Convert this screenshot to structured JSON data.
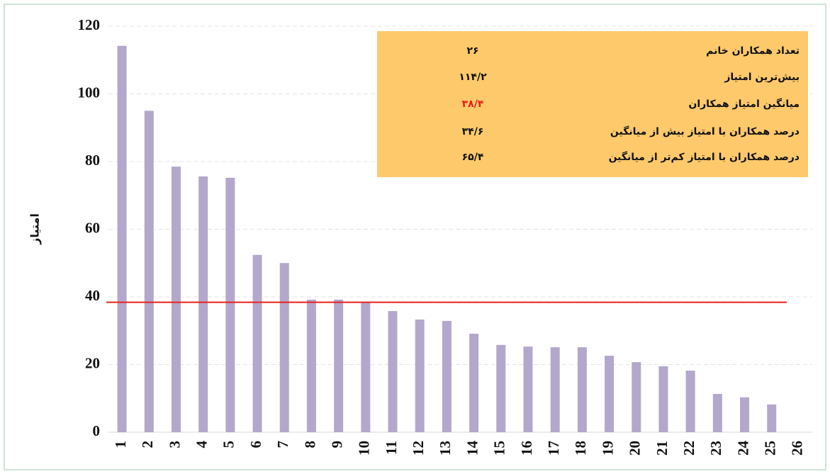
{
  "chart_data": {
    "type": "bar",
    "y_label": "امتیاز",
    "categories": [
      "1",
      "2",
      "3",
      "4",
      "5",
      "6",
      "7",
      "8",
      "9",
      "10",
      "11",
      "12",
      "13",
      "14",
      "15",
      "16",
      "17",
      "18",
      "19",
      "20",
      "21",
      "22",
      "23",
      "24",
      "25",
      "26"
    ],
    "values": [
      114.2,
      95,
      78.5,
      75.6,
      75.2,
      52.4,
      50,
      39.2,
      39.2,
      38.5,
      35.8,
      33.3,
      32.9,
      29.1,
      25.8,
      25.3,
      25.1,
      25.1,
      22.6,
      20.7,
      19.5,
      18.2,
      11.3,
      10.3,
      8.2,
      0
    ],
    "color": "#b4a7cc",
    "ylim": [
      0,
      120
    ],
    "yticks": [
      0,
      20,
      40,
      60,
      80,
      100,
      120
    ],
    "grid": true,
    "reference_line": {
      "value": 38.4,
      "color": "#e8201c"
    },
    "info_table": {
      "color": "#fdc96b",
      "rows": [
        {
          "label": "تعداد همکاران خانم",
          "value": "۲۶"
        },
        {
          "label": "بیش‌ترین امتیاز",
          "value": "۱۱۴/۲"
        },
        {
          "label": "میانگین امتیاز همکاران",
          "value": "۳۸/۴",
          "color": "#e8201c"
        },
        {
          "label": "درصد همکاران با امتیاز بیش از میانگین",
          "value": "۳۴/۶"
        },
        {
          "label": "درصد همکاران با امتیاز کم‌تر از میانگین",
          "value": "۶۵/۴"
        }
      ]
    }
  }
}
